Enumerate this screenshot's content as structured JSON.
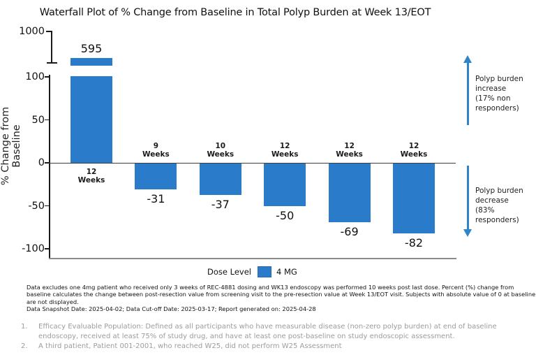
{
  "title": "Waterfall Plot of % Change from Baseline in Total Polyp Burden at Week 13/EOT",
  "chart_data": {
    "type": "bar",
    "title": "Waterfall Plot of % Change from Baseline in Total Polyp Burden at Week 13/EOT",
    "ylabel": "% Change from Baseline",
    "xlabel": "",
    "ylim": [
      -100,
      100
    ],
    "axis_break": {
      "upper_tick": 1000,
      "note": "y-axis broken between 100 and 1000; first bar clipped"
    },
    "y_ticks": [
      {
        "label": "1000",
        "value": 1000
      },
      {
        "label": "100",
        "value": 100
      },
      {
        "label": "50",
        "value": 50
      },
      {
        "label": "0",
        "value": 0
      },
      {
        "label": "-50",
        "value": -50
      },
      {
        "label": "-100",
        "value": -100
      }
    ],
    "bars": [
      {
        "duration": "12 Weeks",
        "value": 595,
        "clipped": true
      },
      {
        "duration": "9 Weeks",
        "value": -31,
        "clipped": false
      },
      {
        "duration": "10 Weeks",
        "value": -37,
        "clipped": false
      },
      {
        "duration": "12 Weeks",
        "value": -50,
        "clipped": false
      },
      {
        "duration": "12 Weeks",
        "value": -69,
        "clipped": false
      },
      {
        "duration": "12 Weeks",
        "value": -82,
        "clipped": false
      }
    ],
    "legend": {
      "title": "Dose Level",
      "entries": [
        {
          "label": "4 MG",
          "color": "#2b7bcb"
        }
      ]
    },
    "grid": false,
    "legend_position": "bottom-center"
  },
  "annotations": {
    "increase": {
      "direction": "up",
      "lines": [
        "Polyp burden",
        "increase",
        "(17% non",
        "responders)"
      ]
    },
    "decrease": {
      "direction": "down",
      "lines": [
        "Polyp burden",
        "decrease",
        "(83%",
        "responders)"
      ]
    }
  },
  "footnote_lines": [
    "Data excludes one 4mg patient who received only 3 weeks of REC-4881 dosing and WK13 endoscopy was performed 10 weeks post last dose. Percent (%) change from",
    "baseline calculates the change between post-resection value from screening visit to the pre-resection value at Week 13/EOT visit. Subjects with absolute value of 0 at baseline",
    "are not displayed.",
    "Data Snapshot Date: 2025-04-02; Data Cut-off Date: 2025-03-17; Report generated on: 2025-04-28"
  ],
  "numbered_footnotes": [
    {
      "num": "1.",
      "lines": [
        "Efficacy Evaluable Population: Defined as all participants who have measurable disease (non-zero polyp burden) at end of baseline",
        "endoscopy, received at least 75% of study drug, and have at least one post-baseline on study endoscopic assessment."
      ]
    },
    {
      "num": "2.",
      "lines": [
        "A third patient, Patient 001-2001, who reached W25, did not perform W25 Assessment"
      ]
    }
  ],
  "colors": {
    "bar": "#2b7bcb",
    "arrow": "#2e85c9",
    "axis": "#1a1a1a",
    "zero_line": "#3d3d3d",
    "bottom_spine": "#8c8c8c",
    "gray_text": "#9c9c9c",
    "text": "#111111"
  }
}
